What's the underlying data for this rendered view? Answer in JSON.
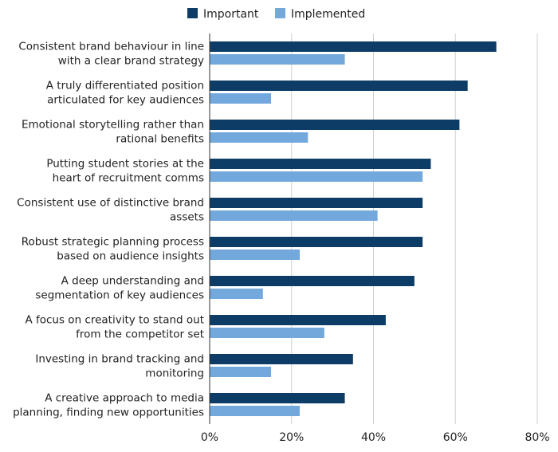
{
  "chart_data": {
    "type": "bar",
    "orientation": "horizontal",
    "categories": [
      [
        "Consistent brand behaviour in line",
        "with a clear brand strategy"
      ],
      [
        "A truly differentiated position",
        "articulated for key audiences"
      ],
      [
        "Emotional storytelling rather than",
        "rational benefits"
      ],
      [
        "Putting student stories at the",
        "heart of recruitment comms"
      ],
      [
        "Consistent use of distinctive brand",
        "assets"
      ],
      [
        "Robust strategic planning process",
        "based on audience insights"
      ],
      [
        "A deep understanding and",
        "segmentation of key audiences"
      ],
      [
        "A focus on creativity to stand out",
        "from the competitor set"
      ],
      [
        "Investing in brand tracking and",
        "monitoring"
      ],
      [
        "A creative approach to media",
        "planning, finding new opportunities"
      ]
    ],
    "series": [
      {
        "name": "Important",
        "color": "#0d3d66",
        "values": [
          70,
          63,
          61,
          54,
          52,
          52,
          50,
          43,
          35,
          33
        ]
      },
      {
        "name": "Implemented",
        "color": "#72a8dc",
        "values": [
          33,
          15,
          24,
          52,
          41,
          22,
          13,
          28,
          15,
          22
        ]
      }
    ],
    "xlim": [
      0,
      80
    ],
    "x_ticks": [
      0,
      20,
      40,
      60,
      80
    ],
    "tick_suffix": "%",
    "grid": "vertical",
    "legend": "top-center",
    "title": "",
    "xlabel": "",
    "ylabel": ""
  }
}
